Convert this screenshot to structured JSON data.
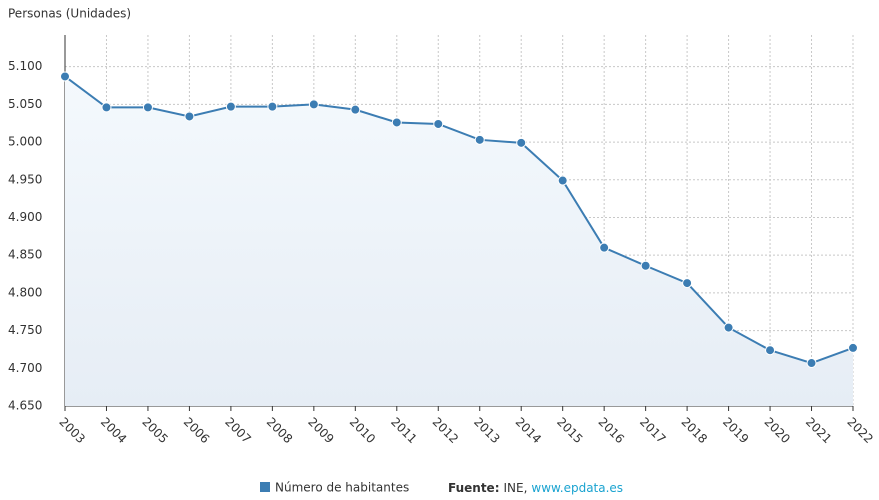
{
  "chart_data": {
    "type": "line",
    "y_label": "Personas (Unidades)",
    "categories": [
      "2003",
      "2004",
      "2005",
      "2006",
      "2007",
      "2008",
      "2009",
      "2010",
      "2011",
      "2012",
      "2013",
      "2014",
      "2015",
      "2016",
      "2017",
      "2018",
      "2019",
      "2020",
      "2021",
      "2022"
    ],
    "series": [
      {
        "name": "Número de habitantes",
        "color": "#3c7db3",
        "values": [
          5087,
          5046,
          5046,
          5034,
          5047,
          5047,
          5050,
          5043,
          5026,
          5024,
          5003,
          4999,
          4949,
          4860,
          4836,
          4813,
          4754,
          4724,
          4707,
          4727
        ]
      }
    ],
    "ylim": [
      4650,
      5142
    ],
    "yticks": [
      {
        "value": 4650,
        "label": "4.650"
      },
      {
        "value": 4700,
        "label": "4.700"
      },
      {
        "value": 4750,
        "label": "4.750"
      },
      {
        "value": 4800,
        "label": "4.800"
      },
      {
        "value": 4850,
        "label": "4.850"
      },
      {
        "value": 4900,
        "label": "4.900"
      },
      {
        "value": 4950,
        "label": "4.950"
      },
      {
        "value": 5000,
        "label": "5.000"
      },
      {
        "value": 5050,
        "label": "5.050"
      },
      {
        "value": 5100,
        "label": "5.100"
      }
    ],
    "grid": true,
    "source_label": "Fuente:",
    "source_text": "INE,",
    "source_link": "www.epdata.es"
  }
}
